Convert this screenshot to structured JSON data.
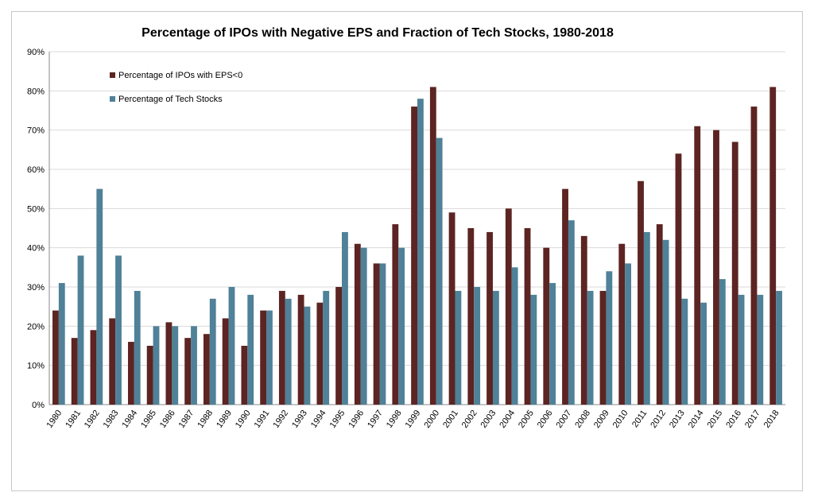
{
  "chart_data": {
    "type": "bar",
    "title": "Percentage of IPOs with Negative EPS and Fraction of Tech Stocks, 1980-2018",
    "xlabel": "",
    "ylabel": "",
    "ylim": [
      0,
      90
    ],
    "yticks": [
      "0%",
      "10%",
      "20%",
      "30%",
      "40%",
      "50%",
      "60%",
      "70%",
      "80%",
      "90%"
    ],
    "grid": true,
    "legend_position": "top-left",
    "categories": [
      "1980",
      "1981",
      "1982",
      "1983",
      "1984",
      "1985",
      "1986",
      "1987",
      "1988",
      "1989",
      "1990",
      "1991",
      "1992",
      "1993",
      "1994",
      "1995",
      "1996",
      "1997",
      "1998",
      "1999",
      "2000",
      "2001",
      "2002",
      "2003",
      "2004",
      "2005",
      "2006",
      "2007",
      "2008",
      "2009",
      "2010",
      "2011",
      "2012",
      "2013",
      "2014",
      "2015",
      "2016",
      "2017",
      "2018"
    ],
    "series": [
      {
        "name": "Percentage of IPOs with EPS<0",
        "color": "#5c2422",
        "values": [
          24,
          17,
          19,
          22,
          16,
          15,
          21,
          17,
          18,
          22,
          15,
          24,
          29,
          28,
          26,
          30,
          41,
          36,
          46,
          76,
          81,
          49,
          45,
          44,
          50,
          45,
          40,
          55,
          43,
          29,
          41,
          57,
          46,
          64,
          71,
          70,
          67,
          76,
          81
        ]
      },
      {
        "name": "Percentage of Tech Stocks",
        "color": "#4f8198",
        "values": [
          31,
          38,
          55,
          38,
          29,
          20,
          20,
          20,
          27,
          30,
          28,
          24,
          27,
          25,
          29,
          44,
          40,
          36,
          40,
          78,
          68,
          29,
          30,
          29,
          35,
          28,
          31,
          47,
          29,
          34,
          36,
          44,
          42,
          27,
          26,
          32,
          28,
          28,
          29
        ]
      }
    ]
  }
}
